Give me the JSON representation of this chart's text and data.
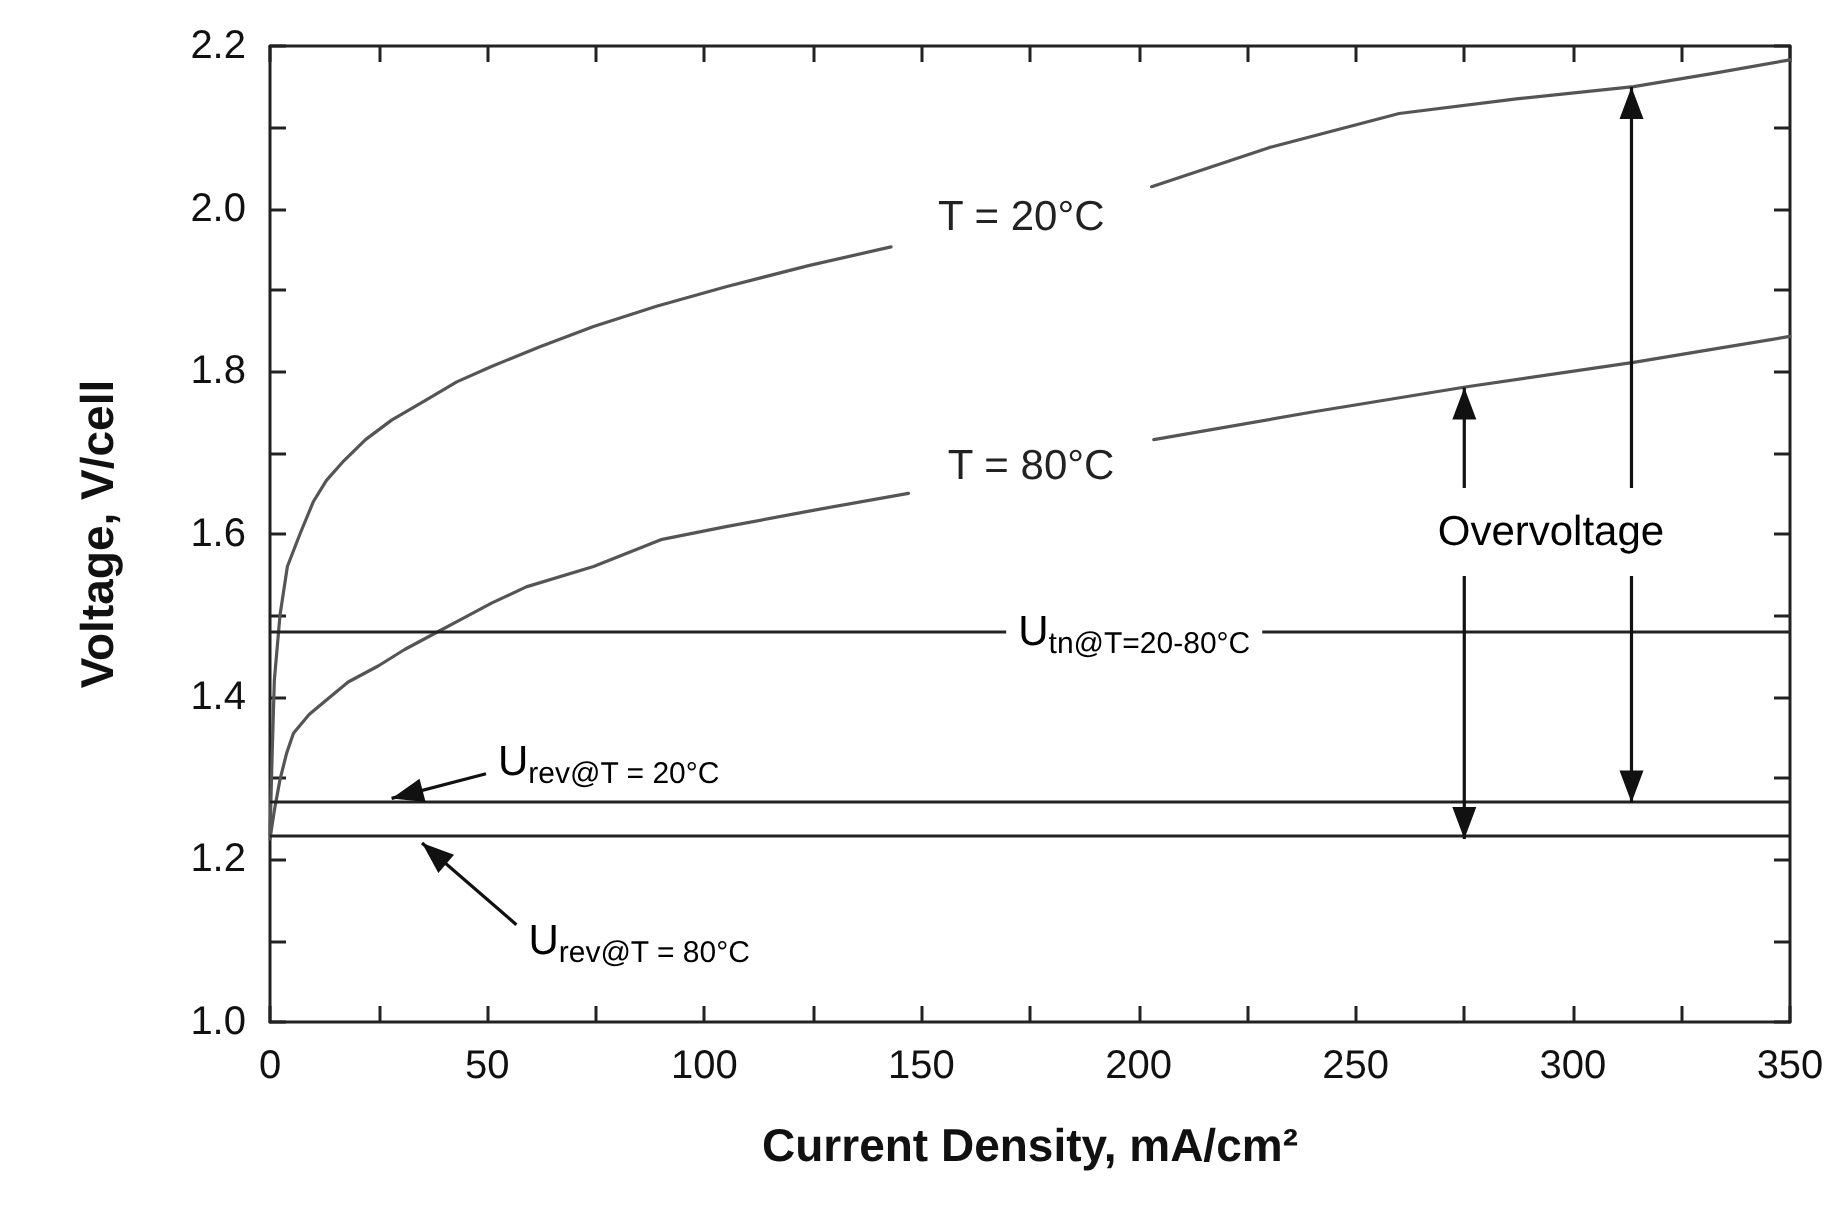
{
  "chart_data": {
    "type": "line",
    "xlabel": "Current Density, mA/cm²",
    "ylabel": "Voltage, V/cell",
    "series": [
      {
        "name": "T = 20°C",
        "color": "#555555",
        "x": [
          0,
          0.5,
          1,
          2.3,
          4,
          6.9,
          10,
          13,
          17,
          22,
          28,
          36,
          43,
          51,
          62,
          74.5,
          89,
          105,
          124,
          143,
          173,
          203,
          230,
          260,
          287,
          314,
          332,
          350
        ],
        "values": [
          1.23,
          1.33,
          1.42,
          1.5,
          1.56,
          1.6,
          1.64,
          1.666,
          1.69,
          1.716,
          1.74,
          1.765,
          1.787,
          1.806,
          1.83,
          1.855,
          1.88,
          1.904,
          1.93,
          1.953,
          null,
          2.027,
          2.075,
          2.117,
          2.135,
          2.15,
          2.166,
          2.183
        ]
      },
      {
        "name": "T = 80°C",
        "color": "#555555",
        "x": [
          0,
          1,
          2.3,
          3.8,
          5.4,
          9,
          13,
          18,
          25,
          31,
          38,
          44,
          51,
          59,
          74.5,
          90,
          105,
          126,
          147,
          175,
          203.5,
          240,
          275.6,
          314,
          332,
          350
        ],
        "values": [
          1.225,
          1.26,
          1.298,
          1.33,
          1.355,
          1.378,
          1.396,
          1.418,
          1.438,
          1.458,
          1.478,
          1.495,
          1.515,
          1.535,
          1.56,
          1.593,
          1.609,
          1.63,
          1.65,
          null,
          1.716,
          1.75,
          1.781,
          1.811,
          1.827,
          1.843
        ]
      }
    ],
    "xlim": [
      0,
      350
    ],
    "xticks": [
      0,
      {
        "value": 25,
        "label": null
      },
      50,
      {
        "value": 75,
        "label": null
      },
      100,
      {
        "value": 125,
        "label": null
      },
      150,
      {
        "value": 175,
        "label": null
      },
      200,
      {
        "value": 225,
        "label": null
      },
      250,
      {
        "value": 275,
        "label": null
      },
      300,
      {
        "value": 325,
        "label": null
      },
      350
    ],
    "ylim": [
      1.0,
      2.2
    ],
    "yticks": [
      {
        "value": 1.0,
        "label": "1.0"
      },
      {
        "value": 1.1,
        "label": null
      },
      1.2,
      {
        "value": 1.3,
        "label": null
      },
      1.4,
      {
        "value": 1.5,
        "label": null
      },
      1.6,
      {
        "value": 1.7,
        "label": null
      },
      1.8,
      {
        "value": 1.9,
        "label": null
      },
      {
        "value": 2.0,
        "label": "2.0"
      },
      {
        "value": 2.1,
        "label": null
      },
      2.2
    ],
    "ref_lines": [
      {
        "axis": "y",
        "value": 1.48,
        "color": "#222222"
      },
      {
        "axis": "y",
        "value": 1.27,
        "color": "#222222"
      },
      {
        "axis": "y",
        "value": 1.225,
        "color": "#222222"
      }
    ],
    "annotations": [
      {
        "text": "Overvoltage",
        "x": 275,
        "y": 1.78
      },
      {
        "text": "U$_{tn@T=20-80°C}$",
        "x": 199,
        "y": 1.48
      },
      {
        "text": "U$_{rev@T = 20°C}$",
        "x": 28,
        "y": 1.27
      },
      {
        "text": "U$_{rev@T = 80°C}$",
        "x": 35,
        "y": 1.225
      }
    ],
    "grid": false,
    "legend": false,
    "marker": "none",
    "line_style": "solid"
  }
}
